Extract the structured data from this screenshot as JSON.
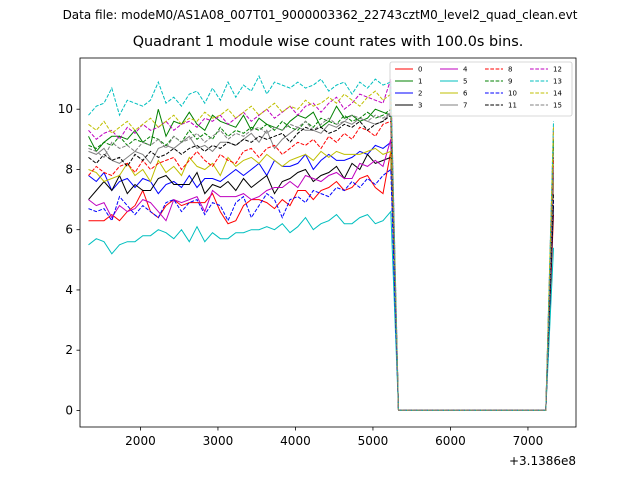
{
  "suptitle": "Data file: modeM0/AS1A08_007T01_9000003362_22743cztM0_level2_quad_clean.evt",
  "chart_data": {
    "type": "line",
    "title": "Quadrant 1 module wise count rates with 100.0s bins.",
    "xlabel": "",
    "ylabel": "",
    "x_offset_label": "+3.1386e8",
    "xlim": [
      1220,
      7620
    ],
    "ylim": [
      -0.55,
      11.7
    ],
    "xticks": [
      2000,
      3000,
      4000,
      5000,
      6000,
      7000
    ],
    "yticks": [
      0,
      2,
      4,
      6,
      8,
      10
    ],
    "grid": false,
    "legend": {
      "placement": "top-right",
      "ncol": 4
    },
    "x": [
      1330,
      1430,
      1530,
      1630,
      1730,
      1830,
      1930,
      2030,
      2130,
      2230,
      2330,
      2430,
      2530,
      2630,
      2730,
      2830,
      2930,
      3030,
      3130,
      3230,
      3330,
      3430,
      3530,
      3630,
      3730,
      3830,
      3930,
      4030,
      4130,
      4230,
      4330,
      4430,
      4530,
      4630,
      4730,
      4830,
      4930,
      5030,
      5130,
      5230,
      5330,
      5430,
      5530,
      5630,
      5730,
      5830,
      5930,
      6030,
      6130,
      6230,
      6330,
      6430,
      6530,
      6630,
      6730,
      6830,
      6930,
      7030,
      7130,
      7230,
      7330
    ],
    "series": [
      {
        "name": "0",
        "color": "#ff0000",
        "dash": "solid",
        "active": [
          6.3,
          6.3,
          6.3,
          6.5,
          6.3,
          6.6,
          6.8,
          7.3,
          6.6,
          6.4,
          6.8,
          7.0,
          6.8,
          6.9,
          6.9,
          6.9,
          7.2,
          6.6,
          6.2,
          6.3,
          6.8,
          7.0,
          7.0,
          6.9,
          6.7,
          7.0,
          6.8,
          7.3,
          7.3,
          7.0,
          7.3,
          7.4,
          7.6,
          7.3,
          7.4,
          7.7,
          7.8,
          7.4,
          7.2,
          8.6
        ],
        "restart": 6.5
      },
      {
        "name": "1",
        "color": "#008000",
        "dash": "solid",
        "active": [
          9.1,
          8.6,
          8.9,
          9.1,
          9.1,
          9.0,
          9.3,
          8.9,
          8.8,
          10.0,
          9.1,
          9.6,
          9.5,
          9.9,
          9.5,
          9.3,
          9.8,
          9.6,
          9.5,
          9.4,
          9.8,
          9.3,
          9.7,
          9.5,
          9.4,
          9.3,
          9.6,
          9.8,
          9.7,
          9.9,
          9.4,
          9.6,
          10.1,
          9.7,
          9.8,
          9.6,
          9.7,
          10.0,
          9.9,
          9.8
        ],
        "restart": 9.0
      },
      {
        "name": "2",
        "color": "#0000ff",
        "dash": "solid",
        "active": [
          7.8,
          7.6,
          7.9,
          7.3,
          7.6,
          7.7,
          7.4,
          7.7,
          7.6,
          7.2,
          7.5,
          7.6,
          7.4,
          7.8,
          7.4,
          7.7,
          7.7,
          7.6,
          7.8,
          8.0,
          7.8,
          8.0,
          8.2,
          7.8,
          8.3,
          8.1,
          8.1,
          8.2,
          8.5,
          8.0,
          8.3,
          8.5,
          8.3,
          8.3,
          8.4,
          8.6,
          8.5,
          8.8,
          8.7,
          8.9
        ],
        "restart": 7.8
      },
      {
        "name": "3",
        "color": "#000000",
        "dash": "solid",
        "active": [
          7.0,
          7.3,
          7.6,
          7.3,
          7.8,
          7.2,
          7.5,
          7.3,
          7.3,
          7.7,
          7.8,
          7.5,
          7.5,
          7.5,
          7.9,
          7.2,
          7.5,
          7.4,
          7.6,
          7.3,
          7.7,
          7.4,
          7.6,
          7.8,
          7.2,
          7.6,
          7.7,
          7.9,
          8.0,
          7.6,
          7.8,
          7.9,
          8.1,
          7.7,
          8.2,
          8.0,
          8.5,
          8.2,
          8.3,
          8.4
        ],
        "restart": 6.8
      },
      {
        "name": "4",
        "color": "#bf00bf",
        "dash": "solid",
        "active": [
          7.0,
          6.8,
          6.9,
          6.4,
          6.8,
          6.6,
          6.7,
          7.0,
          6.9,
          6.6,
          6.3,
          7.0,
          6.9,
          7.0,
          7.1,
          6.6,
          7.3,
          7.1,
          7.1,
          7.1,
          7.2,
          7.0,
          7.1,
          7.3,
          7.4,
          7.4,
          7.6,
          7.4,
          7.8,
          7.7,
          7.6,
          7.8,
          7.9,
          7.7,
          7.7,
          8.2,
          8.1,
          8.3,
          8.1,
          9.0
        ],
        "restart": 7.5
      },
      {
        "name": "5",
        "color": "#00bfbf",
        "dash": "solid",
        "active": [
          5.5,
          5.7,
          5.6,
          5.2,
          5.5,
          5.6,
          5.6,
          5.8,
          5.8,
          6.0,
          5.9,
          5.7,
          6.0,
          5.6,
          6.1,
          5.6,
          5.9,
          5.7,
          5.7,
          5.9,
          5.9,
          6.0,
          6.0,
          6.1,
          6.0,
          6.2,
          5.9,
          6.1,
          6.4,
          6.0,
          6.2,
          6.3,
          6.5,
          6.2,
          6.2,
          6.4,
          6.5,
          6.2,
          6.3,
          6.6
        ],
        "restart": 5.4
      },
      {
        "name": "6",
        "color": "#bfbf00",
        "dash": "solid",
        "active": [
          8.0,
          7.9,
          7.6,
          7.7,
          7.8,
          8.2,
          7.8,
          8.0,
          7.6,
          8.3,
          7.9,
          8.1,
          7.8,
          8.4,
          8.1,
          8.0,
          8.2,
          7.8,
          8.4,
          8.1,
          8.3,
          8.4,
          8.2,
          8.5,
          8.3,
          8.1,
          8.3,
          8.4,
          8.5,
          8.3,
          8.6,
          8.4,
          8.6,
          8.5,
          8.5,
          8.5,
          8.6,
          8.7,
          8.5,
          8.6
        ],
        "restart": 7.6
      },
      {
        "name": "7",
        "color": "#808080",
        "dash": "solid",
        "active": [
          8.6,
          8.5,
          8.7,
          8.3,
          8.2,
          8.4,
          8.6,
          8.5,
          8.2,
          8.7,
          8.8,
          8.7,
          8.9,
          9.1,
          8.7,
          8.8,
          8.6,
          8.9,
          8.9,
          8.8,
          9.0,
          9.2,
          8.9,
          9.3,
          8.7,
          9.0,
          9.2,
          9.4,
          9.3,
          9.3,
          9.2,
          9.5,
          9.4,
          9.6,
          9.5,
          9.7,
          9.6,
          9.5,
          9.6,
          9.9
        ],
        "restart": 7.9
      },
      {
        "name": "8",
        "color": "#ff0000",
        "dash": "dashed",
        "active": [
          7.8,
          8.1,
          7.9,
          7.8,
          8.1,
          8.2,
          7.9,
          8.3,
          8.0,
          8.2,
          8.3,
          8.4,
          8.0,
          8.3,
          8.6,
          8.3,
          8.1,
          8.5,
          8.3,
          8.2,
          8.6,
          8.7,
          8.4,
          8.7,
          8.8,
          8.5,
          8.7,
          8.9,
          8.8,
          9.0,
          8.7,
          9.1,
          8.9,
          9.2,
          9.0,
          9.4,
          9.3,
          9.1,
          9.5,
          9.6
        ],
        "restart": 8.4
      },
      {
        "name": "9",
        "color": "#008000",
        "dash": "dashed",
        "active": [
          8.8,
          8.7,
          8.9,
          8.8,
          9.1,
          8.8,
          9.0,
          8.9,
          9.1,
          9.0,
          8.8,
          9.1,
          8.9,
          9.3,
          9.0,
          9.2,
          9.0,
          9.4,
          9.1,
          9.3,
          9.2,
          9.4,
          9.3,
          9.5,
          9.3,
          9.6,
          9.4,
          9.3,
          9.6,
          9.4,
          9.7,
          9.6,
          9.5,
          9.8,
          9.6,
          9.7,
          9.9,
          9.7,
          9.8,
          10.0
        ],
        "restart": 8.8
      },
      {
        "name": "10",
        "color": "#0000ff",
        "dash": "dashed",
        "active": [
          6.7,
          6.6,
          6.7,
          6.3,
          7.1,
          6.8,
          6.5,
          6.8,
          6.6,
          6.4,
          6.9,
          7.0,
          6.6,
          6.9,
          7.0,
          6.5,
          6.9,
          6.8,
          6.3,
          6.9,
          7.1,
          6.4,
          6.8,
          7.2,
          7.0,
          6.4,
          7.0,
          7.1,
          6.9,
          7.3,
          7.2,
          7.1,
          7.4,
          7.3,
          7.6,
          7.4,
          7.7,
          7.5,
          7.8,
          8.0
        ],
        "restart": 7.0
      },
      {
        "name": "11",
        "color": "#000000",
        "dash": "dashed",
        "active": [
          8.4,
          8.2,
          8.5,
          8.3,
          8.4,
          8.1,
          8.5,
          8.3,
          8.6,
          8.4,
          8.5,
          8.7,
          8.5,
          8.7,
          8.8,
          8.6,
          8.8,
          8.7,
          8.9,
          8.8,
          9.0,
          8.9,
          9.1,
          9.0,
          9.1,
          9.2,
          8.9,
          9.2,
          9.4,
          9.3,
          9.4,
          9.2,
          9.3,
          9.5,
          9.4,
          9.6,
          9.3,
          9.5,
          9.6,
          9.8
        ],
        "restart": 7.2
      },
      {
        "name": "12",
        "color": "#bf00bf",
        "dash": "dashed",
        "active": [
          9.3,
          9.0,
          9.2,
          9.3,
          9.0,
          9.4,
          9.2,
          9.5,
          9.3,
          9.4,
          9.6,
          9.3,
          9.5,
          9.6,
          9.4,
          9.7,
          9.6,
          9.8,
          9.5,
          9.7,
          9.9,
          9.6,
          9.8,
          10.0,
          9.7,
          9.9,
          10.1,
          9.8,
          10.1,
          10.2,
          9.9,
          10.2,
          10.4,
          10.0,
          10.2,
          10.5,
          10.4,
          10.3,
          10.2,
          11.0
        ],
        "restart": 9.4
      },
      {
        "name": "13",
        "color": "#00bfbf",
        "dash": "dashed",
        "active": [
          9.8,
          10.1,
          10.2,
          10.7,
          9.8,
          10.3,
          10.2,
          10.1,
          10.3,
          10.9,
          10.2,
          10.4,
          10.1,
          10.5,
          10.6,
          10.2,
          10.7,
          10.3,
          10.9,
          10.4,
          10.8,
          10.6,
          11.1,
          10.5,
          10.9,
          10.8,
          10.7,
          10.9,
          10.7,
          10.8,
          11.0,
          10.6,
          10.8,
          10.9,
          10.5,
          10.9,
          10.7,
          11.0,
          10.8,
          10.9
        ],
        "restart": 9.6
      },
      {
        "name": "14",
        "color": "#bfbf00",
        "dash": "dashed",
        "active": [
          9.5,
          9.3,
          9.6,
          9.2,
          9.4,
          9.6,
          9.3,
          9.5,
          9.7,
          9.4,
          9.6,
          9.8,
          9.5,
          9.7,
          9.6,
          9.9,
          9.7,
          9.8,
          10.0,
          9.7,
          9.9,
          10.1,
          9.8,
          10.0,
          10.2,
          9.9,
          10.1,
          10.0,
          10.3,
          10.1,
          10.2,
          10.4,
          10.2,
          10.5,
          10.3,
          10.1,
          10.4,
          10.6,
          10.3,
          10.5
        ],
        "restart": 9.4
      },
      {
        "name": "15",
        "color": "#808080",
        "dash": "dashed",
        "active": [
          8.7,
          8.6,
          8.4,
          8.9,
          8.7,
          8.8,
          8.6,
          8.9,
          8.8,
          9.0,
          8.7,
          9.1,
          8.9,
          9.0,
          9.2,
          8.9,
          9.1,
          9.3,
          9.0,
          9.2,
          9.1,
          9.3,
          9.4,
          9.2,
          9.4,
          9.3,
          9.5,
          9.4,
          9.6,
          9.3,
          9.5,
          9.7,
          9.5,
          9.6,
          9.8,
          9.7,
          9.6,
          9.8,
          9.7,
          9.9
        ],
        "restart": 8.0
      }
    ]
  }
}
